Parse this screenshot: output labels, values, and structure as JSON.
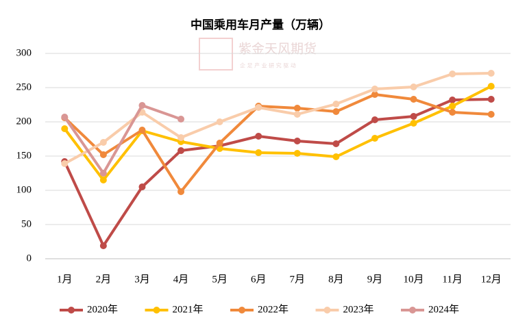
{
  "chart_data": {
    "type": "line",
    "title": "中国乘用车月产量（万辆）",
    "watermark": "紫金天风期货",
    "watermark_subtitle": "企 足 产 业 研 究 驱 动",
    "categories": [
      "1月",
      "2月",
      "3月",
      "4月",
      "5月",
      "6月",
      "7月",
      "8月",
      "9月",
      "10月",
      "11月",
      "12月"
    ],
    "series": [
      {
        "name": "2020年",
        "color": "#bf4b48",
        "values": [
          142,
          19,
          105,
          158,
          165,
          179,
          172,
          168,
          203,
          208,
          232,
          233
        ]
      },
      {
        "name": "2021年",
        "color": "#ffc000",
        "values": [
          190,
          115,
          187,
          171,
          161,
          155,
          154,
          149,
          176,
          198,
          223,
          252
        ]
      },
      {
        "name": "2022年",
        "color": "#f0893b",
        "values": [
          206,
          152,
          188,
          98,
          169,
          223,
          220,
          215,
          240,
          233,
          214,
          211
        ]
      },
      {
        "name": "2023年",
        "color": "#f9ccaa",
        "values": [
          139,
          170,
          214,
          177,
          200,
          221,
          211,
          226,
          248,
          251,
          270,
          271
        ]
      },
      {
        "name": "2024年",
        "color": "#d99694",
        "values": [
          207,
          125,
          224,
          204,
          null,
          null,
          null,
          null,
          null,
          null,
          null,
          null
        ]
      }
    ],
    "ylim": [
      0,
      300
    ],
    "yticks": [
      0,
      50,
      100,
      150,
      200,
      250,
      300
    ],
    "grid": true,
    "legend": "bottom"
  }
}
